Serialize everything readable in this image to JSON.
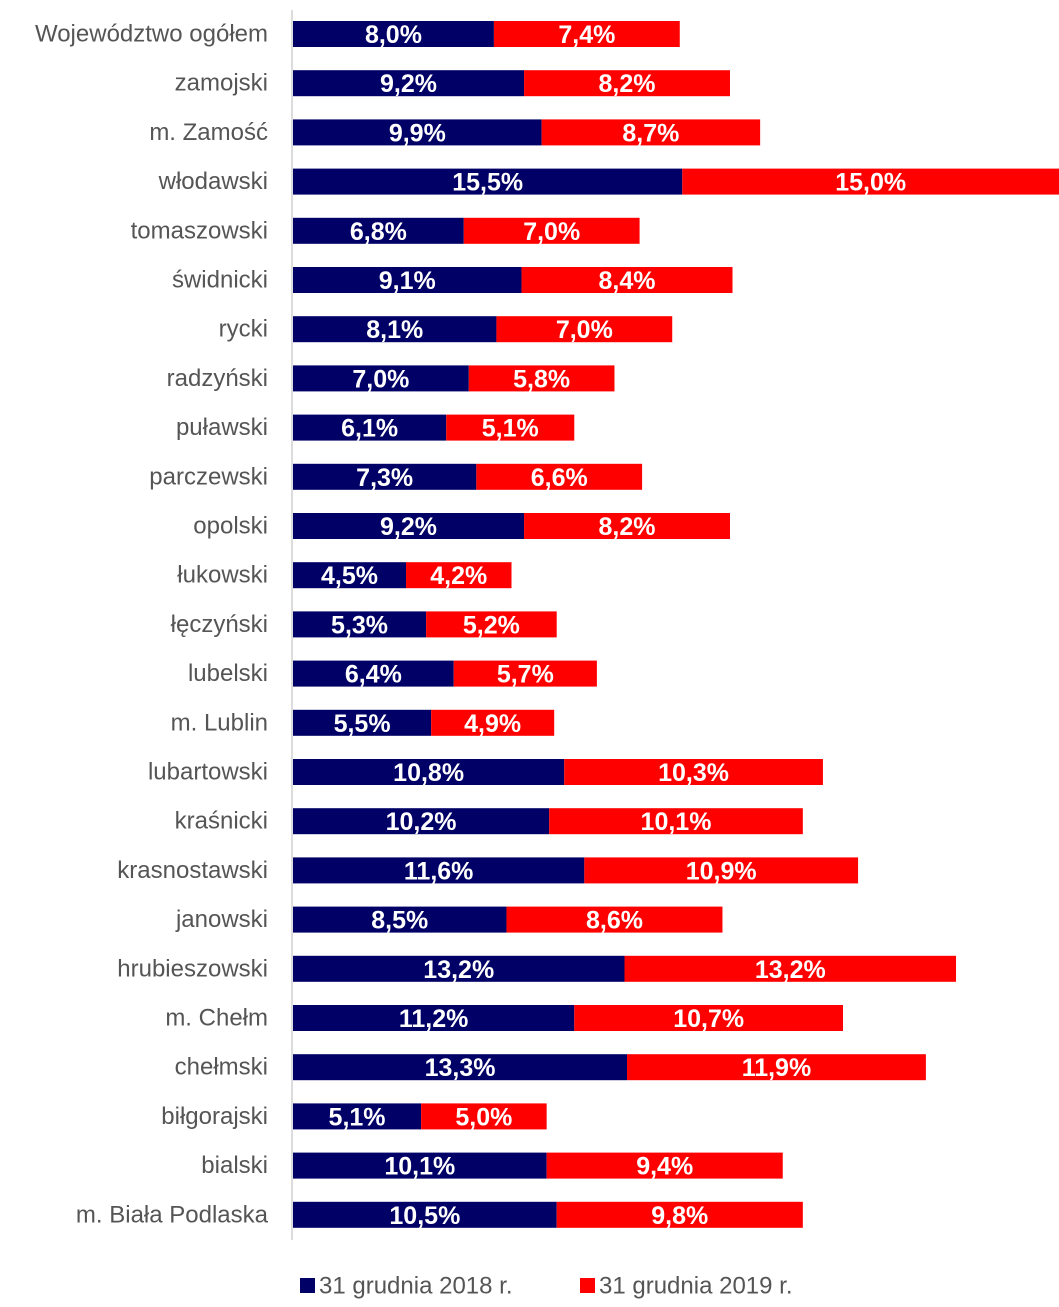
{
  "chart_data": {
    "type": "bar",
    "orientation": "horizontal",
    "stacked": true,
    "categories": [
      "Województwo ogółem",
      "zamojski",
      "m. Zamość",
      "włodawski",
      "tomaszowski",
      "świdnicki",
      "rycki",
      "radzyński",
      "puławski",
      "parczewski",
      "opolski",
      "łukowski",
      "łęczyński",
      "lubelski",
      "m. Lublin",
      "lubartowski",
      "kraśnicki",
      "krasnostawski",
      "janowski",
      "hrubieszowski",
      "m. Chełm",
      "chełmski",
      "biłgorajski",
      "bialski",
      "m. Biała Podlaska"
    ],
    "series": [
      {
        "name": "31 grudnia 2018 r.",
        "color": "#000066",
        "values": [
          8.0,
          9.2,
          9.9,
          15.5,
          6.8,
          9.1,
          8.1,
          7.0,
          6.1,
          7.3,
          9.2,
          4.5,
          5.3,
          6.4,
          5.5,
          10.8,
          10.2,
          11.6,
          8.5,
          13.2,
          11.2,
          13.3,
          5.1,
          10.1,
          10.5
        ],
        "labels": [
          "8,0%",
          "9,2%",
          "9,9%",
          "15,5%",
          "6,8%",
          "9,1%",
          "8,1%",
          "7,0%",
          "6,1%",
          "7,3%",
          "9,2%",
          "4,5%",
          "5,3%",
          "6,4%",
          "5,5%",
          "10,8%",
          "10,2%",
          "11,6%",
          "8,5%",
          "13,2%",
          "11,2%",
          "13,3%",
          "5,1%",
          "10,1%",
          "10,5%"
        ]
      },
      {
        "name": "31 grudnia 2019 r.",
        "color": "#ff0000",
        "values": [
          7.4,
          8.2,
          8.7,
          15.0,
          7.0,
          8.4,
          7.0,
          5.8,
          5.1,
          6.6,
          8.2,
          4.2,
          5.2,
          5.7,
          4.9,
          10.3,
          10.1,
          10.9,
          8.6,
          13.2,
          10.7,
          11.9,
          5.0,
          9.4,
          9.8
        ],
        "labels": [
          "7,4%",
          "8,2%",
          "8,7%",
          "15,0%",
          "7,0%",
          "8,4%",
          "7,0%",
          "5,8%",
          "5,1%",
          "6,6%",
          "8,2%",
          "4,2%",
          "5,2%",
          "5,7%",
          "4,9%",
          "10,3%",
          "10,1%",
          "10,9%",
          "8,6%",
          "13,2%",
          "10,7%",
          "11,9%",
          "5,0%",
          "9,4%",
          "9,8%"
        ]
      }
    ],
    "xlim": [
      0,
      30.5
    ],
    "grid": false,
    "legend_position": "bottom-center"
  }
}
